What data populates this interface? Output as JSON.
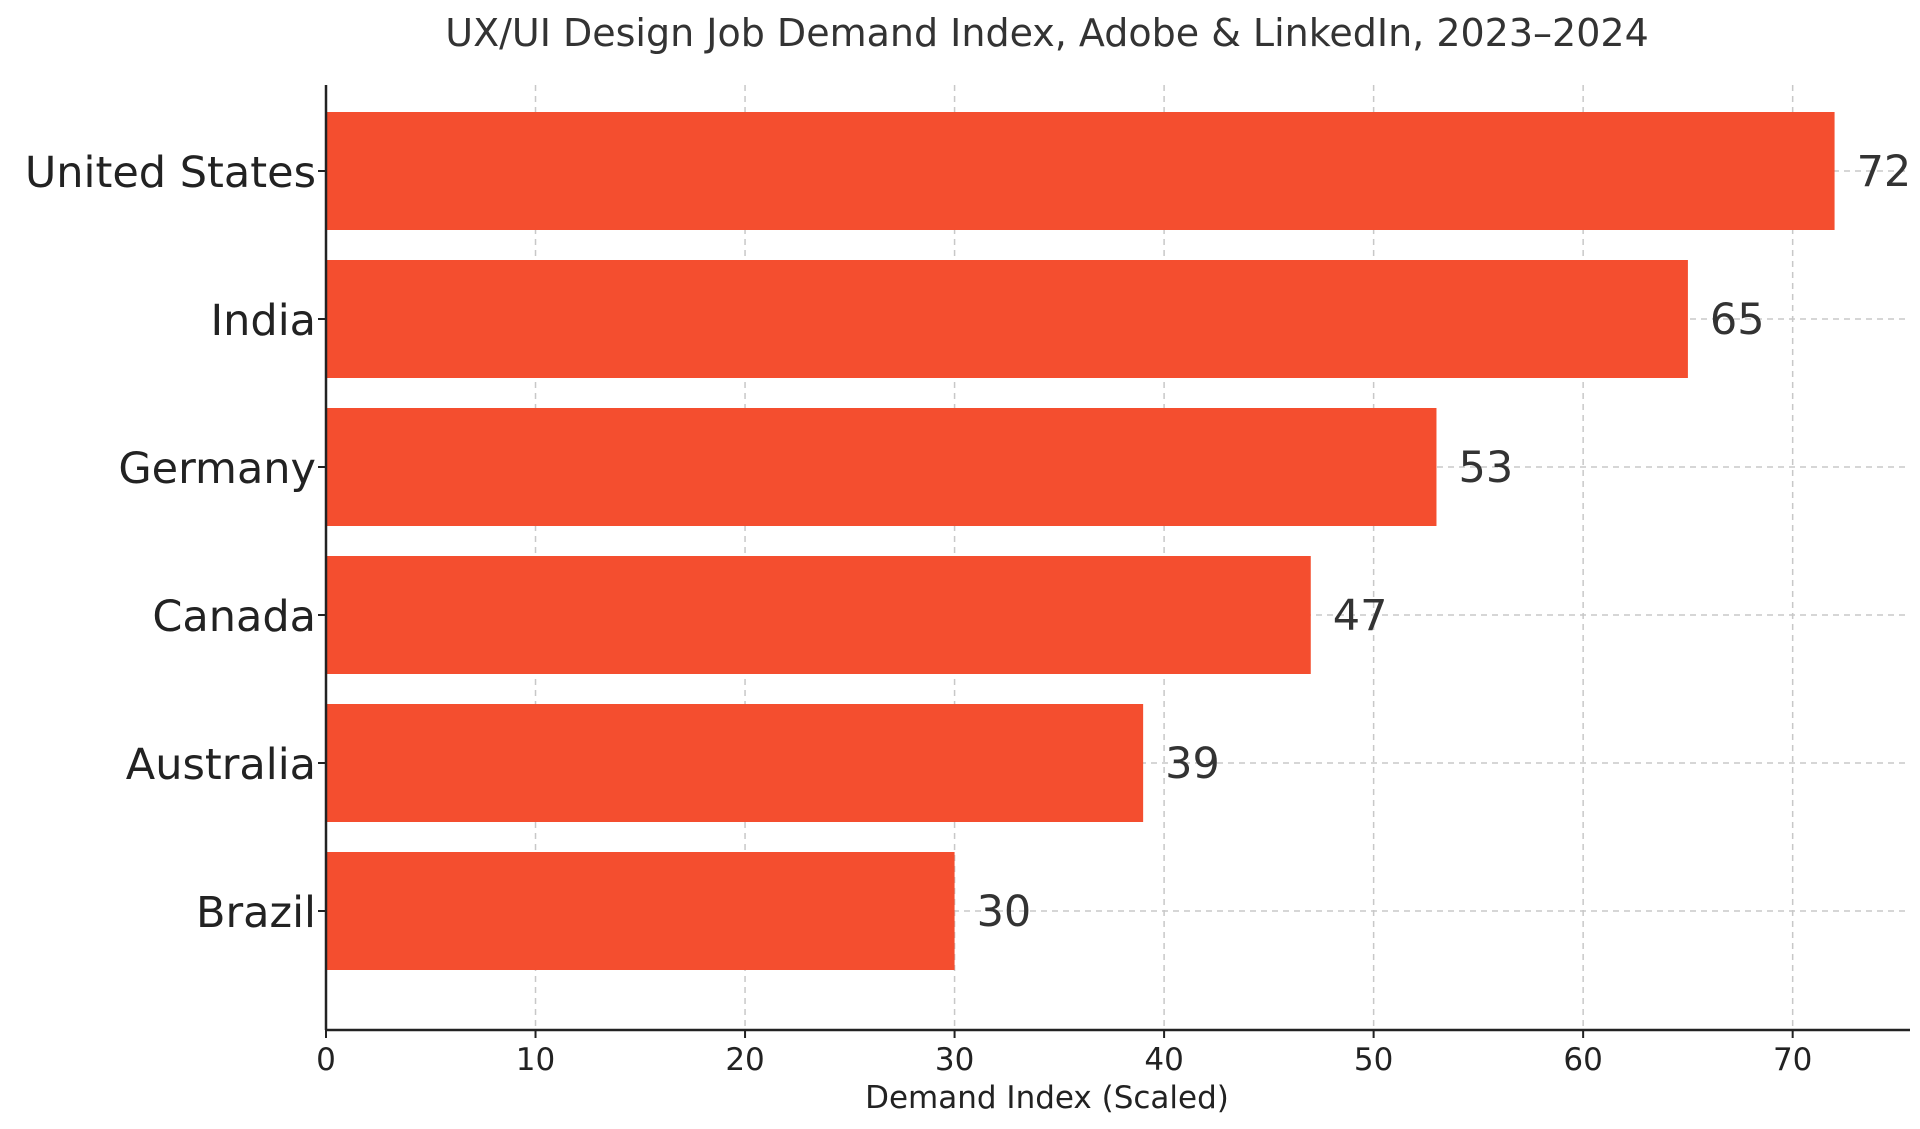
{
  "chart_data": {
    "type": "bar",
    "orientation": "horizontal",
    "title": "UX/UI Design Job Demand Index, Adobe & LinkedIn, 2023–2024",
    "xlabel": "Demand Index (Scaled)",
    "ylabel": "",
    "categories": [
      "United States",
      "India",
      "Germany",
      "Canada",
      "Australia",
      "Brazil"
    ],
    "values": [
      72,
      65,
      53,
      47,
      39,
      30
    ],
    "xlim": [
      0,
      75.6
    ],
    "xticks": [
      0,
      10,
      20,
      30,
      40,
      50,
      60,
      70
    ],
    "grid": true,
    "bar_color": "#f44e2f"
  }
}
